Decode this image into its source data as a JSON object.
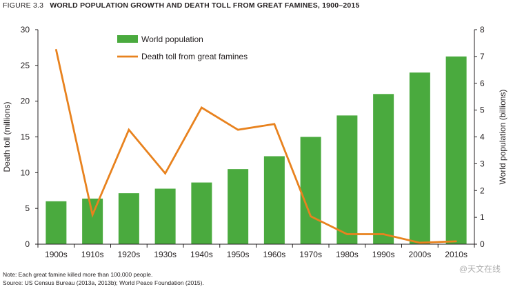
{
  "figure": {
    "number": "FIGURE 3.3",
    "title": "WORLD POPULATION GROWTH AND DEATH TOLL FROM GREAT FAMINES, 1900–2015"
  },
  "notes": {
    "note": "Note: Each great famine killed more than 100,000 people.",
    "source": "Source: US Census Bureau (2013a, 2013b); World Peace Foundation (2015)."
  },
  "watermark": "@天文在线",
  "colors": {
    "bar": "#4aaa3e",
    "line": "#e8821e",
    "axis": "#231f20"
  },
  "chart_data": {
    "type": "bar",
    "title": "WORLD POPULATION GROWTH AND DEATH TOLL FROM GREAT FAMINES, 1900–2015",
    "categories": [
      "1900s",
      "1910s",
      "1920s",
      "1930s",
      "1940s",
      "1950s",
      "1960s",
      "1970s",
      "1980s",
      "1990s",
      "2000s",
      "2010s"
    ],
    "ylabel": "Death toll (millions)",
    "y2label": "World population (billions)",
    "ylim": [
      0,
      30
    ],
    "y2lim": [
      0,
      8
    ],
    "yticks": [
      0,
      5,
      10,
      15,
      20,
      25,
      30
    ],
    "y2ticks": [
      0,
      1,
      2,
      3,
      4,
      5,
      6,
      7,
      8
    ],
    "legend_position": "top-center",
    "grid": false,
    "series": [
      {
        "name": "World population",
        "type": "bar",
        "axis": "right",
        "values": [
          1.6,
          1.7,
          1.9,
          2.07,
          2.3,
          2.8,
          3.28,
          4.0,
          4.8,
          5.6,
          6.4,
          7.0
        ]
      },
      {
        "name": "Death toll from great famines",
        "type": "line",
        "axis": "left",
        "values": [
          27.2,
          4.1,
          16.0,
          9.9,
          19.1,
          16.0,
          16.8,
          3.9,
          1.4,
          1.4,
          0.2,
          0.4
        ]
      }
    ]
  }
}
